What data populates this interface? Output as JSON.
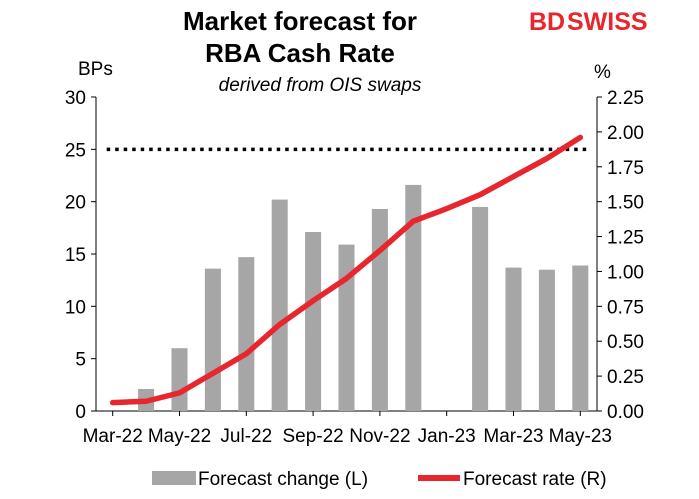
{
  "brand": {
    "logo_text_1": "BD",
    "logo_text_2": "SWISS"
  },
  "chart_data": {
    "type": "bar+line",
    "title_line1": "Market forecast for",
    "title_line2": "RBA Cash Rate",
    "subtitle": "derived from OIS swaps",
    "left_axis_label": "BPs",
    "right_axis_label": "%",
    "left_ylim": [
      0,
      30
    ],
    "left_ticks": [
      "0",
      "5",
      "10",
      "15",
      "20",
      "25",
      "30"
    ],
    "right_ylim": [
      0,
      2.25
    ],
    "right_ticks": [
      "0.00",
      "0.25",
      "0.50",
      "0.75",
      "1.00",
      "1.25",
      "1.50",
      "1.75",
      "2.00",
      "2.25"
    ],
    "x_tick_labels": [
      "Mar-22",
      "May-22",
      "Jul-22",
      "Sep-22",
      "Nov-22",
      "Jan-23",
      "Mar-23",
      "May-23"
    ],
    "months": [
      "Mar-22",
      "Apr-22",
      "May-22",
      "Jun-22",
      "Jul-22",
      "Aug-22",
      "Sep-22",
      "Oct-22",
      "Nov-22",
      "Dec-22",
      "Jan-23",
      "Feb-23",
      "Mar-23",
      "Apr-23",
      "May-23"
    ],
    "bars_series": {
      "name": "Forecast change (L)",
      "color": "#a6a6a6",
      "points": [
        {
          "x": "Apr-22",
          "value": 2.1
        },
        {
          "x": "May-22",
          "value": 6.0
        },
        {
          "x": "Jun-22",
          "value": 13.6
        },
        {
          "x": "Jul-22",
          "value": 14.7
        },
        {
          "x": "Aug-22",
          "value": 20.2
        },
        {
          "x": "Sep-22",
          "value": 17.1
        },
        {
          "x": "Oct-22",
          "value": 15.9
        },
        {
          "x": "Nov-22",
          "value": 19.3
        },
        {
          "x": "Dec-22",
          "value": 21.6
        },
        {
          "x": "Feb-23",
          "value": 19.5
        },
        {
          "x": "Mar-23",
          "value": 13.7
        },
        {
          "x": "Apr-23",
          "value": 13.5
        },
        {
          "x": "May-23",
          "value": 13.9
        }
      ]
    },
    "line_series": {
      "name": "Forecast rate (R)",
      "color": "#e8262e",
      "points": [
        {
          "x": "Mar-22",
          "value": 0.06
        },
        {
          "x": "Apr-22",
          "value": 0.07
        },
        {
          "x": "May-22",
          "value": 0.13
        },
        {
          "x": "Jun-22",
          "value": 0.27
        },
        {
          "x": "Jul-22",
          "value": 0.41
        },
        {
          "x": "Aug-22",
          "value": 0.62
        },
        {
          "x": "Sep-22",
          "value": 0.79
        },
        {
          "x": "Oct-22",
          "value": 0.95
        },
        {
          "x": "Nov-22",
          "value": 1.15
        },
        {
          "x": "Dec-22",
          "value": 1.36
        },
        {
          "x": "Jan-23",
          "value": 1.45
        },
        {
          "x": "Feb-23",
          "value": 1.55
        },
        {
          "x": "Mar-23",
          "value": 1.68
        },
        {
          "x": "Apr-23",
          "value": 1.81
        },
        {
          "x": "May-23",
          "value": 1.96
        }
      ]
    },
    "reference_line": {
      "left_value": 25,
      "x_start": "Mar-22",
      "x_end": "May-23",
      "style": "dotted",
      "color": "#000000"
    },
    "legend": {
      "placement": "bottom"
    }
  }
}
